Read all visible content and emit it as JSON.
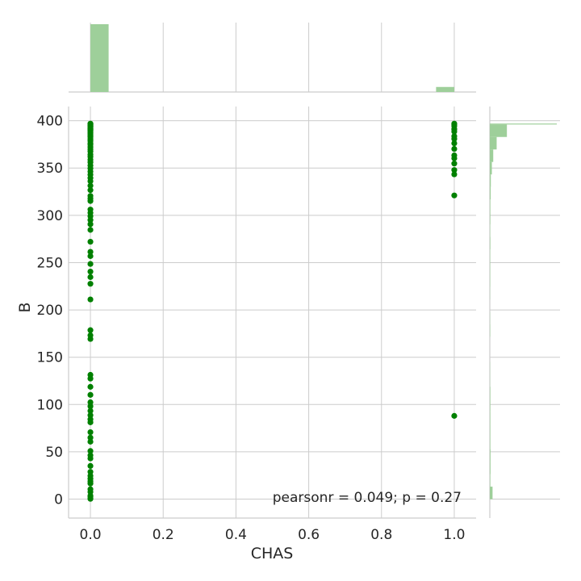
{
  "chart_data": {
    "type": "scatter",
    "title": "",
    "xlabel": "CHAS",
    "ylabel": "B",
    "xlim": [
      -0.06,
      1.06
    ],
    "ylim": [
      -20,
      415
    ],
    "x_ticks": [
      0.0,
      0.2,
      0.4,
      0.6,
      0.8,
      1.0
    ],
    "x_tick_labels": [
      "0.0",
      "0.2",
      "0.4",
      "0.6",
      "0.8",
      "1.0"
    ],
    "y_ticks": [
      0,
      50,
      100,
      150,
      200,
      250,
      300,
      350,
      400
    ],
    "y_tick_labels": [
      "0",
      "50",
      "100",
      "150",
      "200",
      "250",
      "300",
      "350",
      "400"
    ],
    "grid": true,
    "annotation": "pearsonr = 0.049; p = 0.27",
    "colors": {
      "points": "#008000",
      "hist": "#9ecf9a",
      "grid": "#cccccc",
      "text": "#262626"
    },
    "series": [
      {
        "x_value": 0,
        "y": [
          396.9,
          396.5,
          395.8,
          395.2,
          394.6,
          394.1,
          393.5,
          392.8,
          391.9,
          391.2,
          390.5,
          389.7,
          388.6,
          387.4,
          386.1,
          384.5,
          382.9,
          380.8,
          378.6,
          376.1,
          374.7,
          372.1,
          369.8,
          367.4,
          364.3,
          361.9,
          358.8,
          356.0,
          352.6,
          349.5,
          346.3,
          343.0,
          339.4,
          336.1,
          331.3,
          326.6,
          320.5,
          317.8,
          315.1,
          306.1,
          302.6,
          299.1,
          295.0,
          290.6,
          284.6,
          272.1,
          261.4,
          256.9,
          248.6,
          240.5,
          234.7,
          227.6,
          211.1,
          178.6,
          173.2,
          169.3,
          131.4,
          127.4,
          118.7,
          110.2,
          102.4,
          98.2,
          93.3,
          88.6,
          84.3,
          81.2,
          70.8,
          65.0,
          60.7,
          50.9,
          46.3,
          43.1,
          35.1,
          28.8,
          24.7,
          21.6,
          18.9,
          16.5,
          10.5,
          7.7,
          3.6,
          2.6,
          0.3
        ]
      },
      {
        "x_value": 1,
        "y": [
          396.9,
          395.6,
          394.3,
          391.3,
          390.7,
          388.5,
          383.6,
          380.7,
          376.1,
          370.2,
          363.4,
          360.2,
          354.7,
          347.9,
          343.3,
          321.0,
          88.0
        ]
      }
    ],
    "marginal_x_hist": {
      "bins": [
        0.0,
        0.05,
        0.1,
        0.15,
        0.2,
        0.25,
        0.3,
        0.35,
        0.4,
        0.45,
        0.5,
        0.55,
        0.6,
        0.65,
        0.7,
        0.75,
        0.8,
        0.85,
        0.9,
        0.95,
        1.0
      ],
      "counts": [
        471,
        0,
        0,
        0,
        0,
        0,
        0,
        0,
        0,
        0,
        0,
        0,
        0,
        0,
        0,
        0,
        0,
        0,
        0,
        35
      ]
    },
    "marginal_y_hist": {
      "bins": [
        0,
        13.2,
        26.4,
        39.6,
        52.8,
        66.0,
        79.2,
        92.4,
        105.6,
        118.8,
        132.0,
        145.2,
        158.4,
        171.6,
        184.8,
        198.0,
        211.2,
        224.4,
        237.6,
        250.8,
        264.0,
        277.2,
        290.4,
        303.6,
        316.8,
        330.0,
        343.2,
        356.4,
        369.6,
        382.8,
        396.0,
        397.0
      ],
      "counts": [
        16,
        3,
        4,
        4,
        3,
        3,
        3,
        3,
        3,
        1,
        1,
        0,
        0,
        2,
        1,
        0,
        1,
        2,
        2,
        2,
        3,
        2,
        3,
        3,
        5,
        6,
        12,
        20,
        40,
        100,
        392
      ]
    }
  }
}
